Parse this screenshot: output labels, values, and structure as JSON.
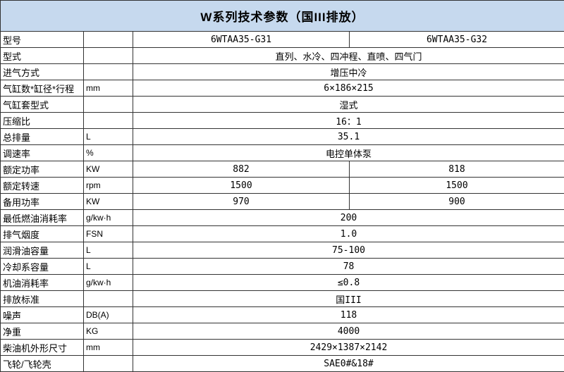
{
  "title": "W系列技术参数（国III排放）",
  "colors": {
    "header_bg": "#c6d9ee",
    "border": "#333333"
  },
  "table": {
    "rows": [
      {
        "label": "型号",
        "unit": "",
        "values": [
          "6WTAA35-G31",
          "6WTAA35-G32"
        ]
      },
      {
        "label": "型式",
        "unit": "",
        "values": [
          "直列、水冷、四冲程、直喷、四气门"
        ]
      },
      {
        "label": "进气方式",
        "unit": "",
        "values": [
          "增压中冷"
        ]
      },
      {
        "label": "气缸数*缸径*行程",
        "unit": "mm",
        "values": [
          "6×186×215"
        ]
      },
      {
        "label": "气缸套型式",
        "unit": "",
        "values": [
          "湿式"
        ]
      },
      {
        "label": "压缩比",
        "unit": "",
        "values": [
          "16：1"
        ]
      },
      {
        "label": "总排量",
        "unit": "L",
        "values": [
          "35.1"
        ]
      },
      {
        "label": "调速率",
        "unit": "%",
        "values": [
          "电控单体泵"
        ]
      },
      {
        "label": "额定功率",
        "unit": "KW",
        "values": [
          "882",
          "818"
        ]
      },
      {
        "label": "额定转速",
        "unit": "rpm",
        "values": [
          "1500",
          "1500"
        ]
      },
      {
        "label": "备用功率",
        "unit": "KW",
        "values": [
          "970",
          "900"
        ]
      },
      {
        "label": "最低燃油消耗率",
        "unit": "g/kw·h",
        "values": [
          "200"
        ]
      },
      {
        "label": "排气烟度",
        "unit": "FSN",
        "values": [
          "1.0"
        ]
      },
      {
        "label": "润滑油容量",
        "unit": "L",
        "values": [
          "75-100"
        ]
      },
      {
        "label": "冷却系容量",
        "unit": "L",
        "values": [
          "78"
        ]
      },
      {
        "label": "机油消耗率",
        "unit": "g/kw·h",
        "values": [
          "≤0.8"
        ]
      },
      {
        "label": "排放标准",
        "unit": "",
        "values": [
          "国III"
        ]
      },
      {
        "label": "噪声",
        "unit": "DB(A)",
        "values": [
          "118"
        ]
      },
      {
        "label": "净重",
        "unit": "KG",
        "values": [
          "4000"
        ]
      },
      {
        "label": "柴油机外形尺寸",
        "unit": "mm",
        "values": [
          "2429×1387×2142"
        ]
      },
      {
        "label": "飞轮/飞轮壳",
        "unit": "",
        "values": [
          "SAE0#&18#"
        ]
      }
    ]
  }
}
